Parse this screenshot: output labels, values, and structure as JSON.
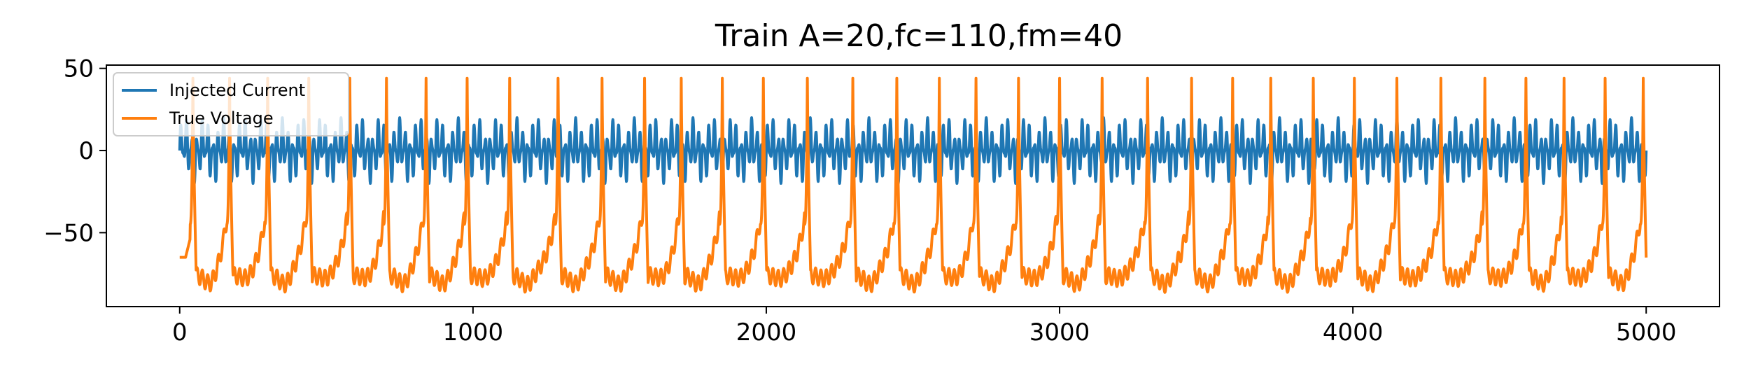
{
  "chart_data": {
    "type": "line",
    "title": "Train A=20,fc=110,fm=40",
    "xlabel": "",
    "ylabel": "",
    "xlim": [
      -250,
      5250
    ],
    "ylim": [
      -95,
      52
    ],
    "grid": false,
    "legend_position": "top-left",
    "x_ticks": [
      0,
      1000,
      2000,
      3000,
      4000,
      5000
    ],
    "x_tick_labels": [
      "0",
      "1000",
      "2000",
      "3000",
      "4000",
      "5000"
    ],
    "y_ticks": [
      50,
      0,
      -50
    ],
    "y_tick_labels": [
      "50",
      "0",
      "−50"
    ],
    "x": {
      "start": 0,
      "stop": 5000
    },
    "series": [
      {
        "name": "Injected Current",
        "color": "#1f77b4",
        "description_form": "amplitude-modulated sinusoid",
        "amplitude": 20,
        "carrier_frequency": 110,
        "modulation_frequency": 40,
        "range": [
          -20,
          20
        ]
      },
      {
        "name": "True Voltage",
        "color": "#ff7f0e",
        "resting_level": -65,
        "spike_peak": 44,
        "trough_min": -88,
        "spike_times": [
          45,
          170,
          300,
          440,
          580,
          705,
          840,
          980,
          1125,
          1290,
          1440,
          1585,
          1710,
          1850,
          1990,
          2140,
          2295,
          2445,
          2590,
          2715,
          2860,
          3000,
          3145,
          3300,
          3450,
          3590,
          3720,
          3865,
          4005,
          4150,
          4300,
          4450,
          4590,
          4720,
          4860,
          4990
        ]
      }
    ]
  }
}
